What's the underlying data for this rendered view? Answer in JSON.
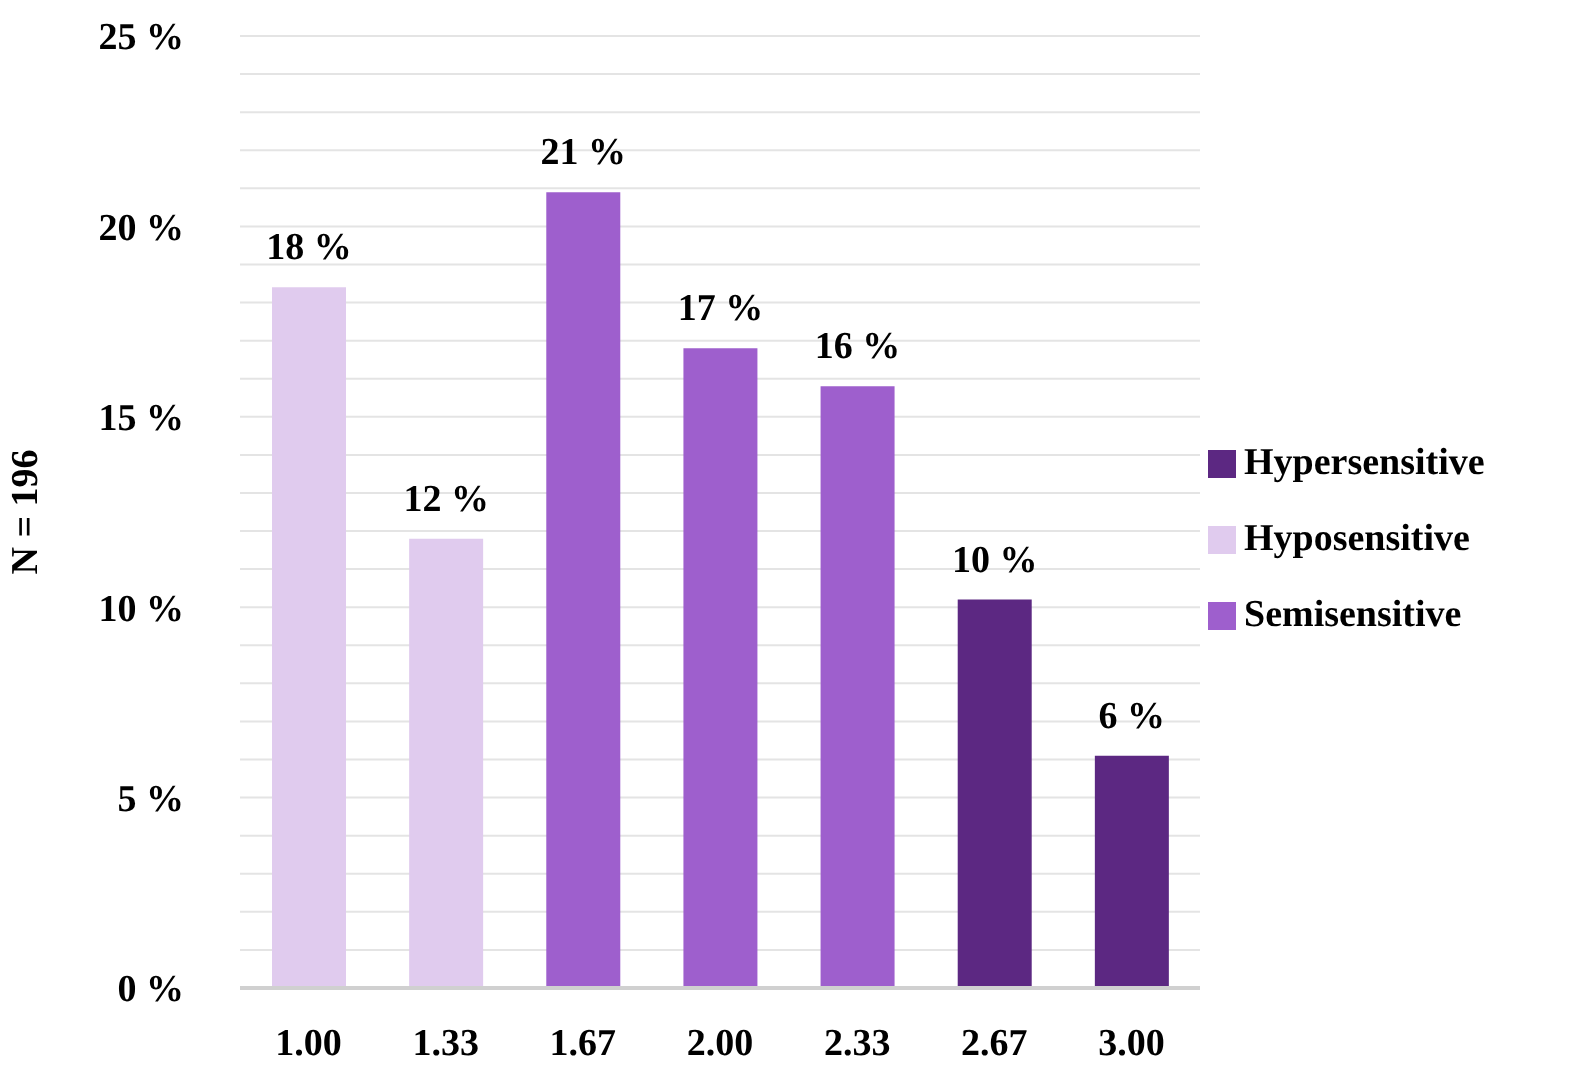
{
  "chart_data": {
    "type": "bar",
    "ylabel": "N = 196",
    "categories": [
      "1.00",
      "1.33",
      "1.67",
      "2.00",
      "2.33",
      "2.67",
      "3.00"
    ],
    "stacked": true,
    "series": [
      {
        "name": "Hyposensitive",
        "color": "#e0cbee",
        "values": [
          18.4,
          11.8,
          null,
          null,
          null,
          null,
          null
        ],
        "value_labels": [
          "18 %",
          "12 %",
          null,
          null,
          null,
          null,
          null
        ]
      },
      {
        "name": "Semisensitive",
        "color": "#9e5fcd",
        "values": [
          null,
          null,
          20.9,
          16.8,
          15.8,
          null,
          null
        ],
        "value_labels": [
          null,
          null,
          "21 %",
          "17 %",
          "16 %",
          null,
          null
        ]
      },
      {
        "name": "Hypersensitive",
        "color": "#5c2882",
        "values": [
          null,
          null,
          null,
          null,
          null,
          10.2,
          6.1
        ],
        "value_labels": [
          null,
          null,
          null,
          null,
          null,
          "10 %",
          "6 %"
        ]
      }
    ],
    "ylim": [
      0,
      25
    ],
    "yticks": [
      {
        "value": 0,
        "label": "0 %"
      },
      {
        "value": 1,
        "label": null
      },
      {
        "value": 2,
        "label": null
      },
      {
        "value": 3,
        "label": null
      },
      {
        "value": 4,
        "label": null
      },
      {
        "value": 5,
        "label": "5 %"
      },
      {
        "value": 6,
        "label": null
      },
      {
        "value": 7,
        "label": null
      },
      {
        "value": 8,
        "label": null
      },
      {
        "value": 9,
        "label": null
      },
      {
        "value": 10,
        "label": "10 %"
      },
      {
        "value": 11,
        "label": null
      },
      {
        "value": 12,
        "label": null
      },
      {
        "value": 13,
        "label": null
      },
      {
        "value": 14,
        "label": null
      },
      {
        "value": 15,
        "label": "15 %"
      },
      {
        "value": 16,
        "label": null
      },
      {
        "value": 17,
        "label": null
      },
      {
        "value": 18,
        "label": null
      },
      {
        "value": 19,
        "label": null
      },
      {
        "value": 20,
        "label": "20 %"
      },
      {
        "value": 21,
        "label": null
      },
      {
        "value": 22,
        "label": null
      },
      {
        "value": 23,
        "label": null
      },
      {
        "value": 24,
        "label": null
      },
      {
        "value": 25,
        "label": "25 %"
      }
    ],
    "grid": "y",
    "legend": "right"
  }
}
